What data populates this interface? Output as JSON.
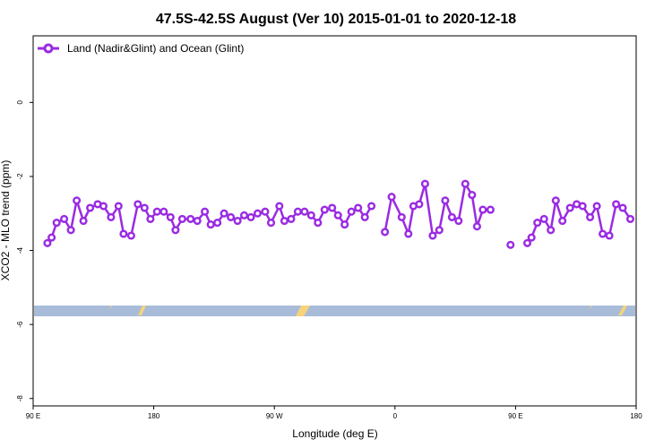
{
  "chart_data": {
    "type": "line",
    "title": "47.5S-42.5S August (Ver 10)   2015-01-01 to 2020-12-18",
    "xlabel": "Longitude (deg E)",
    "ylabel": "XCO2 - MLO trend (ppm)",
    "xlim": [
      90,
      450
    ],
    "ylim": [
      -8.2,
      1.8
    ],
    "x_ticks": [
      {
        "value": 90,
        "label": "90 E"
      },
      {
        "value": 162,
        "label": "180"
      },
      {
        "value": 234,
        "label": "90 W"
      },
      {
        "value": 306,
        "label": "0"
      },
      {
        "value": 378,
        "label": "90 E"
      },
      {
        "value": 450,
        "label": "180"
      }
    ],
    "y_ticks": [
      {
        "value": 0,
        "label": "0"
      },
      {
        "value": -2,
        "label": "-2"
      },
      {
        "value": -4,
        "label": "-4"
      },
      {
        "value": -6,
        "label": "-6"
      },
      {
        "value": -8,
        "label": "-8"
      }
    ],
    "legend_position": "top-left",
    "colors": {
      "series": "#9a2be2",
      "ocean_band": "#a8bcd9",
      "land_marks": "#f7d37a"
    },
    "series": [
      {
        "name": "Land (Nadir&Glint) and Ocean (Glint)",
        "segments": [
          [
            [
              98.5,
              -3.8
            ],
            [
              101,
              -3.65
            ],
            [
              104,
              -3.25
            ],
            [
              108.5,
              -3.15
            ],
            [
              112.5,
              -3.45
            ],
            [
              116,
              -2.65
            ],
            [
              120,
              -3.2
            ],
            [
              124,
              -2.85
            ],
            [
              128.5,
              -2.75
            ],
            [
              132,
              -2.8
            ],
            [
              136.5,
              -3.1
            ],
            [
              141,
              -2.8
            ],
            [
              144,
              -3.55
            ],
            [
              148.5,
              -3.6
            ],
            [
              152.5,
              -2.75
            ],
            [
              156.5,
              -2.85
            ],
            [
              160,
              -3.15
            ],
            [
              164,
              -2.95
            ],
            [
              168,
              -2.95
            ],
            [
              172,
              -3.1
            ],
            [
              175,
              -3.45
            ],
            [
              179,
              -3.15
            ],
            [
              184,
              -3.15
            ],
            [
              188,
              -3.2
            ],
            [
              192.5,
              -2.95
            ],
            [
              196,
              -3.3
            ],
            [
              200,
              -3.25
            ],
            [
              204,
              -3.0
            ],
            [
              208,
              -3.1
            ],
            [
              212,
              -3.2
            ],
            [
              216,
              -3.05
            ],
            [
              220,
              -3.1
            ],
            [
              224,
              -3.0
            ],
            [
              228.5,
              -2.95
            ],
            [
              232,
              -3.25
            ],
            [
              237,
              -2.8
            ],
            [
              240,
              -3.2
            ],
            [
              244,
              -3.15
            ],
            [
              248,
              -2.95
            ],
            [
              252,
              -2.95
            ],
            [
              256,
              -3.05
            ],
            [
              260,
              -3.25
            ],
            [
              264,
              -2.9
            ],
            [
              268.5,
              -2.85
            ],
            [
              272,
              -3.05
            ],
            [
              276,
              -3.3
            ],
            [
              280,
              -2.95
            ],
            [
              284,
              -2.85
            ],
            [
              288,
              -3.1
            ],
            [
              292,
              -2.8
            ]
          ],
          [
            [
              300,
              -3.5
            ],
            [
              304,
              -2.55
            ],
            [
              310,
              -3.1
            ],
            [
              314,
              -3.55
            ],
            [
              317,
              -2.8
            ],
            [
              320.5,
              -2.75
            ],
            [
              324,
              -2.2
            ],
            [
              328.5,
              -3.6
            ],
            [
              332.5,
              -3.45
            ],
            [
              336,
              -2.65
            ],
            [
              340,
              -3.1
            ],
            [
              344,
              -3.2
            ],
            [
              348,
              -2.2
            ],
            [
              352,
              -2.5
            ],
            [
              355,
              -3.35
            ],
            [
              358.5,
              -2.9
            ],
            [
              363,
              -2.9
            ]
          ],
          [
            [
              375,
              -3.85
            ]
          ],
          [
            [
              385,
              -3.8
            ],
            [
              387.5,
              -3.65
            ],
            [
              391,
              -3.25
            ],
            [
              395,
              -3.15
            ],
            [
              399,
              -3.45
            ],
            [
              402,
              -2.65
            ],
            [
              406,
              -3.2
            ],
            [
              410.5,
              -2.85
            ],
            [
              414.5,
              -2.75
            ],
            [
              418,
              -2.8
            ],
            [
              422.5,
              -3.1
            ],
            [
              426.5,
              -2.8
            ],
            [
              430,
              -3.55
            ],
            [
              434,
              -3.6
            ],
            [
              438,
              -2.75
            ],
            [
              442,
              -2.85
            ],
            [
              446.5,
              -3.15
            ]
          ]
        ]
      }
    ]
  }
}
